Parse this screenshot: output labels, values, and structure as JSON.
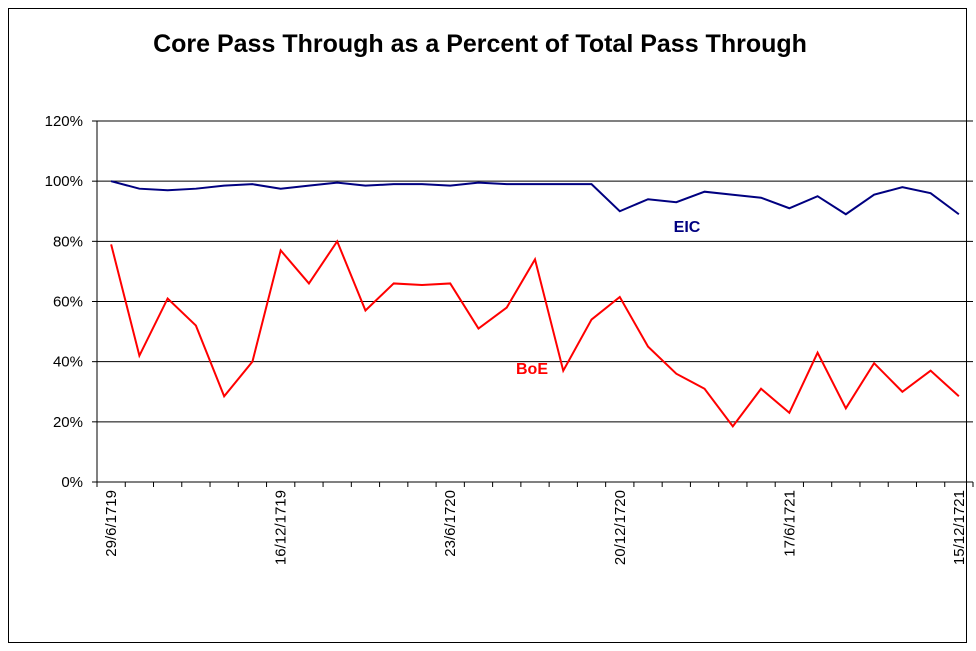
{
  "chart_data": {
    "type": "line",
    "title": "Core Pass Through as a Percent of Total Pass Through",
    "categories": [
      "29/6/1719",
      null,
      null,
      null,
      null,
      null,
      "16/12/1719",
      null,
      null,
      null,
      null,
      null,
      "23/6/1720",
      null,
      null,
      null,
      null,
      null,
      "20/12/1720",
      null,
      null,
      null,
      null,
      null,
      "17/6/1721",
      null,
      null,
      null,
      null,
      null,
      "15/12/1721"
    ],
    "series": [
      {
        "name": "EIC",
        "color": "#000080",
        "values": [
          100,
          97.5,
          97,
          97.5,
          98.5,
          99,
          97.5,
          98.5,
          99.5,
          98.5,
          99,
          99,
          98.5,
          99.5,
          99,
          99,
          99,
          99,
          90,
          94,
          93,
          96.5,
          95.5,
          94.5,
          91,
          95,
          89,
          95.5,
          98,
          96,
          89
        ]
      },
      {
        "name": "BoE",
        "color": "#ff0000",
        "values": [
          79,
          42,
          61,
          52,
          28.5,
          40,
          77,
          66,
          80,
          57,
          66,
          65.5,
          66,
          51,
          58,
          74,
          37,
          54,
          61.5,
          45,
          36,
          31,
          18.5,
          31,
          23,
          43,
          24.5,
          39.5,
          30,
          37,
          28.5
        ]
      }
    ],
    "ylim": [
      0,
      120
    ],
    "yticks": [
      {
        "value": 0,
        "label": "0%"
      },
      {
        "value": 20,
        "label": "20%"
      },
      {
        "value": 40,
        "label": "40%"
      },
      {
        "value": 60,
        "label": "60%"
      },
      {
        "value": 80,
        "label": "80%"
      },
      {
        "value": 100,
        "label": "100%"
      },
      {
        "value": 120,
        "label": "120%"
      }
    ],
    "grid": true
  }
}
